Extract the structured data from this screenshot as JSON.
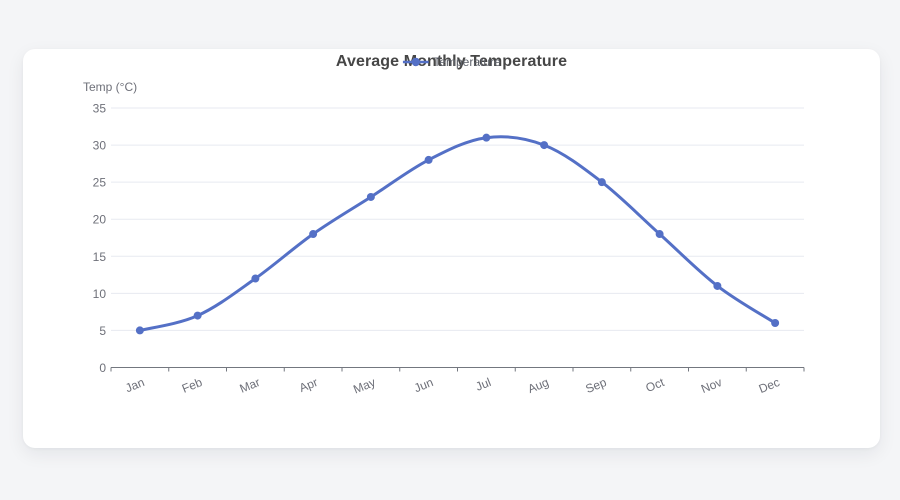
{
  "window": {
    "background": "#f4f5f7",
    "card_background": "#ffffff"
  },
  "chart": {
    "title": "Average Monthly Temperature",
    "legend": {
      "label": "Temperature"
    },
    "y_axis_name": "Temp (°C)"
  },
  "chart_data": {
    "type": "line",
    "title": "Average Monthly Temperature",
    "categories": [
      "Jan",
      "Feb",
      "Mar",
      "Apr",
      "May",
      "Jun",
      "Jul",
      "Aug",
      "Sep",
      "Oct",
      "Nov",
      "Dec"
    ],
    "series": [
      {
        "name": "Temperature",
        "values": [
          5,
          7,
          12,
          18,
          23,
          28,
          31,
          30,
          25,
          18,
          11,
          6
        ],
        "color": "#5470c6",
        "smooth": true,
        "point_radius": 4,
        "line_width": 3
      }
    ],
    "xlabel": "",
    "ylabel": "Temp (°C)",
    "ylim": [
      0,
      35
    ],
    "ytick_step": 5,
    "grid": true,
    "legend_position": "top-center",
    "x_label_rotation_deg": -22
  },
  "style": {
    "accent": "#5470c6",
    "title_color": "#464646",
    "axis_label_color": "#6e7079",
    "gridline_color": "#e7eaf0",
    "axis_line_color": "#73777f",
    "legend_text_color": "#5e626b"
  }
}
